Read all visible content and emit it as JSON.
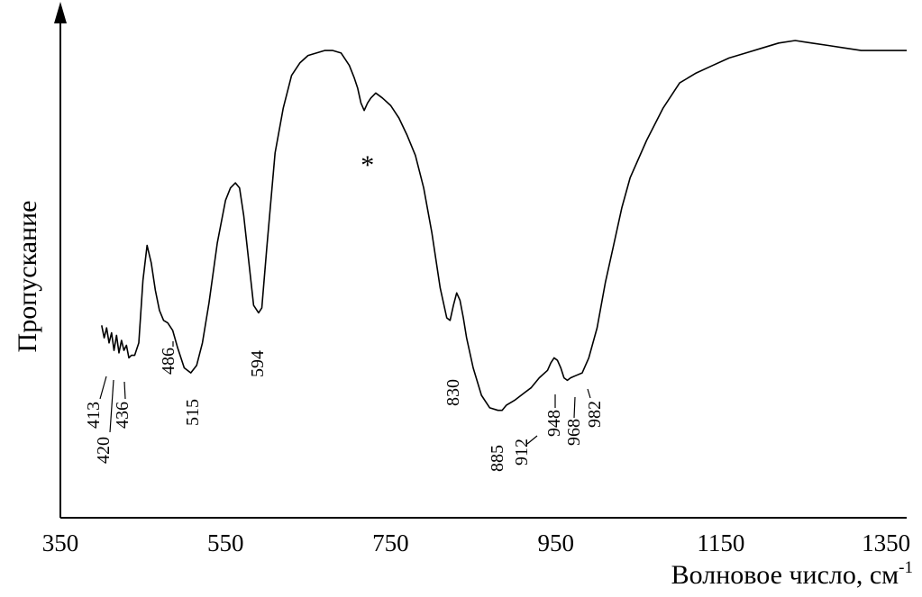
{
  "chart_data": {
    "type": "line",
    "title": "",
    "xlabel": "Волновое число, см",
    "xlabel_sup": "-1",
    "ylabel": "Пропускание",
    "xlim": [
      350,
      1375
    ],
    "ylim": [
      0,
      100
    ],
    "grid": false,
    "x_ticks": [
      "350",
      "550",
      "750",
      "950",
      "1150",
      "1350"
    ],
    "annotations": [
      "413",
      "420",
      "436",
      "486",
      "515",
      "594",
      "830",
      "885",
      "912",
      "948",
      "968",
      "982"
    ],
    "marker_note": "*",
    "marker_at": 722,
    "series": [
      {
        "x": [
          400,
          403,
          406,
          409,
          412,
          415,
          418,
          421,
          424,
          427,
          430,
          433,
          436,
          440,
          445,
          450,
          455,
          460,
          465,
          470,
          475,
          480,
          486,
          492,
          500,
          508,
          515,
          522,
          530,
          540,
          550,
          556,
          562,
          567,
          572,
          578,
          584,
          590,
          594,
          600,
          610,
          620,
          630,
          640,
          650,
          660,
          670,
          680,
          690,
          700,
          706,
          710,
          714,
          718,
          722,
          726,
          732,
          740,
          750,
          760,
          770,
          780,
          790,
          800,
          810,
          818,
          822,
          826,
          830,
          834,
          838,
          842,
          850,
          860,
          870,
          880,
          885,
          890,
          900,
          912,
          920,
          930,
          940,
          944,
          948,
          952,
          956,
          960,
          964,
          968,
          975,
          982,
          990,
          1000,
          1010,
          1020,
          1030,
          1040,
          1060,
          1080,
          1100,
          1120,
          1140,
          1160,
          1180,
          1200,
          1220,
          1240,
          1260,
          1280,
          1300,
          1320,
          1340,
          1360,
          1375
        ],
        "y": [
          38.5,
          36,
          38,
          35,
          37,
          33.5,
          36.5,
          33,
          35.5,
          33.5,
          34.5,
          32,
          32.5,
          32.5,
          35,
          47.5,
          54.5,
          51,
          45.5,
          41.5,
          39.5,
          39,
          37.5,
          34,
          30,
          29,
          30.5,
          35,
          43,
          55,
          63.5,
          66,
          67,
          66,
          60.5,
          51.5,
          42.5,
          41,
          42,
          54,
          73,
          82,
          88.5,
          91,
          92.5,
          93,
          93.5,
          93.5,
          93,
          90.5,
          88,
          86,
          83,
          81.5,
          83,
          84,
          85,
          84,
          82.5,
          80,
          76.5,
          72.5,
          66,
          57,
          46,
          40,
          39.5,
          42.5,
          45,
          43.5,
          40,
          36,
          30,
          24.5,
          22,
          21.5,
          21.5,
          22.5,
          23.5,
          25,
          26,
          28,
          29.5,
          31,
          32,
          31.5,
          30,
          28,
          27.5,
          28,
          28.5,
          29,
          32,
          38,
          47,
          54.5,
          62,
          68,
          75.5,
          82,
          87,
          89,
          90.5,
          92,
          93,
          94,
          95,
          95.5,
          95,
          94.5,
          94,
          93.5,
          93.5,
          93.5,
          93.5
        ]
      }
    ]
  }
}
